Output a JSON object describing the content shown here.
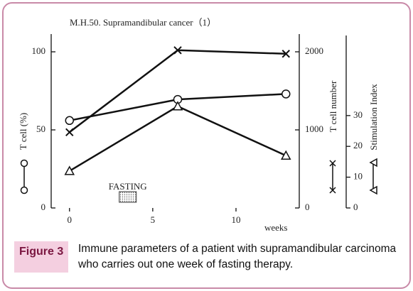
{
  "chart_data": {
    "type": "line",
    "title": "M.H.50. Supramandibular cancer（1）",
    "xlabel": "weeks",
    "x": [
      0,
      6.5,
      13
    ],
    "xlim": [
      -1.1,
      13.8
    ],
    "xticks": [
      0,
      5,
      10
    ],
    "ylim": [
      0,
      100
    ],
    "yticks": [
      0,
      50,
      100
    ],
    "y2lim": [
      0,
      2000
    ],
    "y2ticks": [
      0,
      1000,
      2000
    ],
    "y3lim": [
      0,
      56
    ],
    "y3ticks": [
      0,
      10,
      20,
      30
    ],
    "annotation": {
      "text": "FASTING",
      "x": 3.5
    },
    "series": [
      {
        "name": "T cell (%)",
        "marker": "circle",
        "color": "#111111",
        "axis": "y",
        "values": [
          56,
          69.5,
          73
        ]
      },
      {
        "name": "T cell number",
        "marker": "cross",
        "color": "#111111",
        "axis": "y2",
        "values": [
          970,
          2020,
          1975
        ]
      },
      {
        "name": "Stimulation Index",
        "marker": "triangle",
        "color": "#111111",
        "axis": "y3",
        "values": [
          12,
          33,
          17
        ]
      }
    ]
  },
  "figure_label": "Figure 3",
  "caption": "Immune parameters of a patient with supramandibular carcinoma who carries out one week of fasting therapy."
}
